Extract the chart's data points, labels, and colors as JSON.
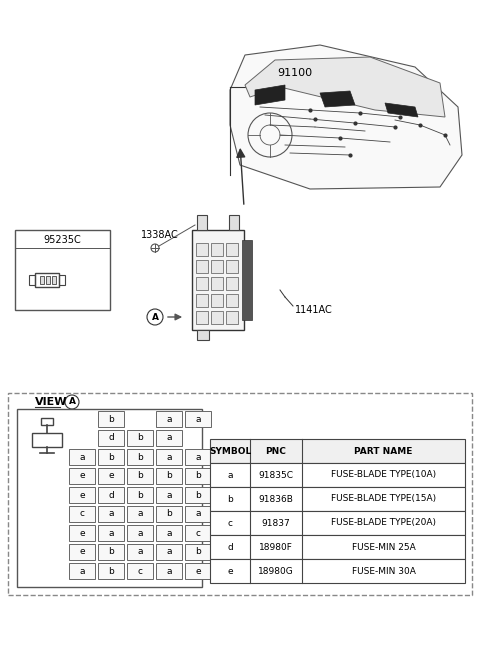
{
  "bg_color": "#ffffff",
  "label_91100": "91100",
  "label_1338AC": "1338AC",
  "label_1141AC": "1141AC",
  "label_95235C": "95235C",
  "view_label": "VIEW",
  "view_circle_label": "A",
  "table_headers": [
    "SYMBOL",
    "PNC",
    "PART NAME"
  ],
  "table_rows": [
    [
      "a",
      "91835C",
      "FUSE-BLADE TYPE(10A)"
    ],
    [
      "b",
      "91836B",
      "FUSE-BLADE TYPE(15A)"
    ],
    [
      "c",
      "91837",
      "FUSE-BLADE TYPE(20A)"
    ],
    [
      "d",
      "18980F",
      "FUSE-MIN 25A"
    ],
    [
      "e",
      "18980G",
      "FUSE-MIN 30A"
    ]
  ],
  "fuse_layout": [
    [
      [
        1,
        "b"
      ],
      [
        2,
        " "
      ],
      [
        3,
        "a"
      ],
      [
        4,
        "a"
      ]
    ],
    [
      [
        1,
        "d"
      ],
      [
        2,
        "b"
      ],
      [
        3,
        "a"
      ],
      [
        4,
        " "
      ]
    ],
    [
      [
        0,
        "a"
      ],
      [
        1,
        "b"
      ],
      [
        2,
        "b"
      ],
      [
        3,
        "a"
      ],
      [
        4,
        "a"
      ]
    ],
    [
      [
        0,
        "e"
      ],
      [
        1,
        "e"
      ],
      [
        2,
        "b"
      ],
      [
        3,
        "b"
      ],
      [
        4,
        "b"
      ]
    ],
    [
      [
        0,
        "e"
      ],
      [
        1,
        "d"
      ],
      [
        2,
        "b"
      ],
      [
        3,
        "a"
      ],
      [
        4,
        "b"
      ]
    ],
    [
      [
        0,
        "c"
      ],
      [
        1,
        "a"
      ],
      [
        2,
        "a"
      ],
      [
        3,
        "b"
      ],
      [
        4,
        "a"
      ]
    ],
    [
      [
        0,
        "e"
      ],
      [
        1,
        "a"
      ],
      [
        2,
        "a"
      ],
      [
        3,
        "a"
      ],
      [
        4,
        "c"
      ]
    ],
    [
      [
        0,
        "e"
      ],
      [
        1,
        "b"
      ],
      [
        2,
        "a"
      ],
      [
        3,
        "a"
      ],
      [
        4,
        "b"
      ]
    ],
    [
      [
        0,
        "a"
      ],
      [
        1,
        "b"
      ],
      [
        2,
        "c"
      ],
      [
        3,
        "a"
      ],
      [
        4,
        "e"
      ]
    ]
  ]
}
